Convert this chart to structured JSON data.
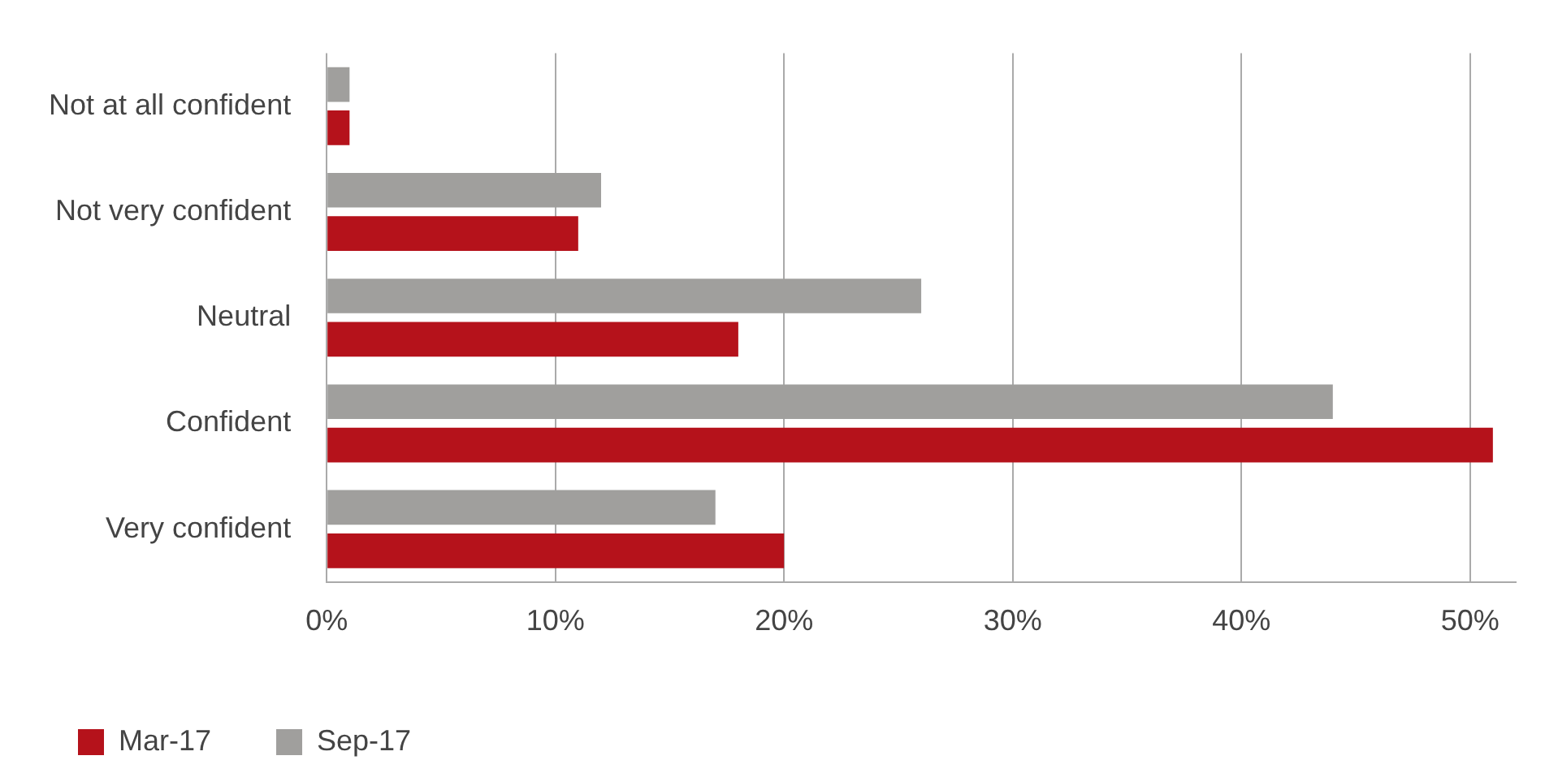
{
  "chart_data": {
    "type": "bar",
    "orientation": "horizontal",
    "categories": [
      "Not at all confident",
      "Not very confident",
      "Neutral",
      "Confident",
      "Very confident"
    ],
    "series": [
      {
        "name": "Mar-17",
        "color": "#b5121b",
        "values": [
          1,
          11,
          18,
          51,
          20
        ]
      },
      {
        "name": "Sep-17",
        "color": "#a09f9d",
        "values": [
          1,
          12,
          26,
          44,
          17
        ]
      }
    ],
    "xlim": [
      0,
      52
    ],
    "xticks": [
      {
        "value": 0,
        "label": "0%"
      },
      {
        "value": 10,
        "label": "10%"
      },
      {
        "value": 20,
        "label": "20%"
      },
      {
        "value": 30,
        "label": "30%"
      },
      {
        "value": 40,
        "label": "40%"
      },
      {
        "value": 50,
        "label": "50%"
      }
    ],
    "grid": "x",
    "legend": "bottom left"
  }
}
